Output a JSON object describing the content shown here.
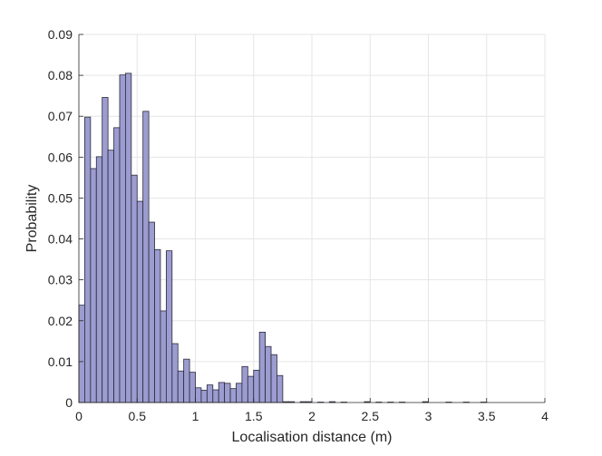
{
  "chart_data": {
    "type": "bar",
    "title": "",
    "xlabel": "Localisation distance (m)",
    "ylabel": "Probability",
    "xlim": [
      0,
      4
    ],
    "ylim": [
      0,
      0.09
    ],
    "grid": true,
    "bin_width": 0.05,
    "x_ticks": [
      0,
      0.5,
      1,
      1.5,
      2,
      2.5,
      3,
      3.5,
      4
    ],
    "x_tick_labels": [
      "0",
      "0.5",
      "1",
      "1.5",
      "2",
      "2.5",
      "3",
      "3.5",
      "4"
    ],
    "y_ticks": [
      0,
      0.01,
      0.02,
      0.03,
      0.04,
      0.05,
      0.06,
      0.07,
      0.08,
      0.09
    ],
    "y_tick_labels": [
      "0",
      "0.01",
      "0.02",
      "0.03",
      "0.04",
      "0.05",
      "0.06",
      "0.07",
      "0.08",
      "0.09"
    ],
    "bar_color": "#9c9cd0",
    "edge_color": "#2a2a3a",
    "values": [
      0.0238,
      0.0698,
      0.0572,
      0.0601,
      0.0746,
      0.0617,
      0.0672,
      0.0801,
      0.0805,
      0.0556,
      0.0492,
      0.0712,
      0.0441,
      0.0374,
      0.0224,
      0.0371,
      0.0144,
      0.0077,
      0.0106,
      0.0074,
      0.0036,
      0.003,
      0.0043,
      0.0031,
      0.0049,
      0.0047,
      0.0034,
      0.0047,
      0.0088,
      0.0064,
      0.0079,
      0.0172,
      0.0137,
      0.0117,
      0.0066,
      0.0002,
      0.0002,
      0.0,
      0.0002,
      0.0002,
      0.0,
      0.0001,
      0.0,
      0.0002,
      0.0,
      0.0001,
      0.0,
      0.0,
      0.0,
      0.0002,
      0.0,
      0.0001,
      0.0,
      0.0001,
      0.0,
      0.0001,
      0.0,
      0.0,
      0.0,
      0.0002,
      0.0,
      0.0,
      0.0,
      0.0001,
      0.0,
      0.0,
      0.0001,
      0.0,
      0.0,
      0.0001,
      0.0,
      0.0,
      0.0,
      0.0,
      0.0,
      0.0,
      0.0,
      0.0,
      0.0,
      0.0
    ]
  }
}
